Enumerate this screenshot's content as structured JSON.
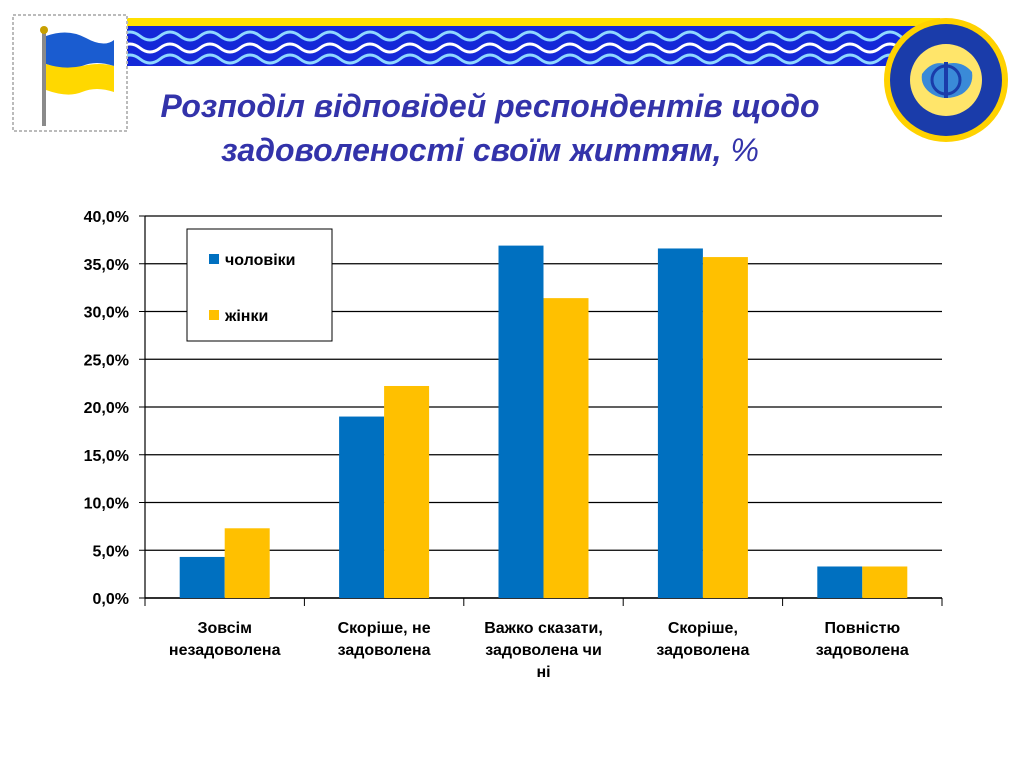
{
  "title": {
    "line1": "Розподіл відповідей респондентів щодо",
    "line2": "задоволеності своїм життям,",
    "unit": " %"
  },
  "decor": {
    "flag_icon": "ukraine-flag-icon",
    "emblem_icon": "institute-emblem-icon",
    "banner_icon": "wave-banner-icon"
  },
  "colors": {
    "men": "#0070C0",
    "women": "#FFC000",
    "title": "#3333aa",
    "banner_blue": "#1428d8",
    "banner_yellow": "#ffe000"
  },
  "chart_data": {
    "type": "bar",
    "categories": [
      [
        "Зовсім",
        "незадоволена"
      ],
      [
        "Скоріше, не",
        "задоволена"
      ],
      [
        "Важко сказати,",
        "задоволена чи",
        "ні"
      ],
      [
        "Скоріше,",
        "задоволена"
      ],
      [
        "Повністю",
        "задоволена"
      ]
    ],
    "series": [
      {
        "name": "чоловіки",
        "values": [
          4.3,
          19.0,
          36.9,
          36.6,
          3.3
        ]
      },
      {
        "name": "жінки",
        "values": [
          7.3,
          22.2,
          31.4,
          35.7,
          3.3
        ]
      }
    ],
    "ylim": [
      0,
      40
    ],
    "yticks": [
      0,
      5,
      10,
      15,
      20,
      25,
      30,
      35,
      40
    ],
    "ytick_labels": [
      "0,0%",
      "5,0%",
      "10,0%",
      "15,0%",
      "20,0%",
      "25,0%",
      "30,0%",
      "35,0%",
      "40,0%"
    ],
    "grid": true,
    "legend": "top-left inside",
    "xlabel": "",
    "ylabel": ""
  }
}
